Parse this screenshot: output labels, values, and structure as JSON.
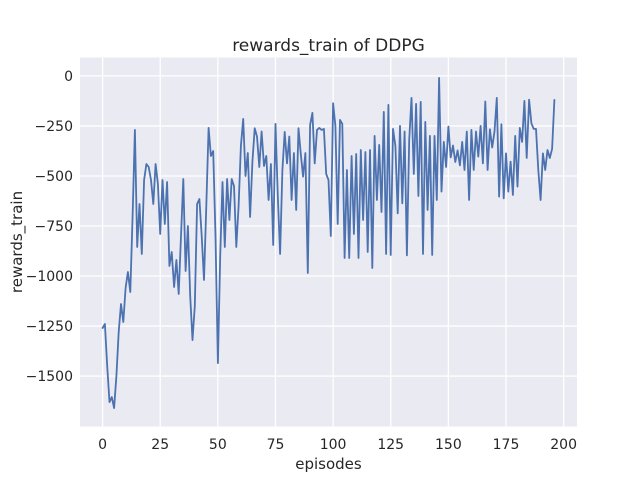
{
  "figure": {
    "title": "rewards_train of DDPG",
    "xlabel": "episodes",
    "ylabel": "rewards_train",
    "background_color": "#ffffff",
    "panel_color": "#eaeaf2",
    "grid_color": "#ffffff",
    "line_color": "#4c72b0",
    "text_color": "#262626"
  },
  "chart_data": {
    "type": "line",
    "title": "rewards_train of DDPG",
    "xlabel": "episodes",
    "ylabel": "rewards_train",
    "grid": true,
    "legend": false,
    "x_ticks": [
      0,
      25,
      50,
      75,
      100,
      125,
      150,
      175,
      200
    ],
    "y_ticks": [
      0,
      -250,
      -500,
      -750,
      -1000,
      -1250,
      -1500
    ],
    "xlim": [
      -9.8,
      205.8
    ],
    "ylim": [
      -1752,
      92
    ],
    "episodes_range": [
      0,
      196
    ],
    "series": [
      {
        "name": "rewards_train",
        "color": "#4c72b0",
        "x_is_index": true,
        "values": [
          -1260,
          -1240,
          -1450,
          -1630,
          -1605,
          -1660,
          -1500,
          -1280,
          -1140,
          -1230,
          -1060,
          -980,
          -1080,
          -700,
          -270,
          -855,
          -640,
          -890,
          -520,
          -440,
          -455,
          -520,
          -640,
          -440,
          -540,
          -790,
          -520,
          -740,
          -530,
          -950,
          -880,
          -1055,
          -920,
          -1090,
          -800,
          -515,
          -975,
          -750,
          -1100,
          -1320,
          -1150,
          -640,
          -615,
          -800,
          -1020,
          -650,
          -260,
          -400,
          -375,
          -800,
          -1435,
          -900,
          -530,
          -855,
          -515,
          -720,
          -515,
          -550,
          -855,
          -650,
          -350,
          -215,
          -500,
          -385,
          -705,
          -430,
          -262,
          -303,
          -455,
          -278,
          -450,
          -400,
          -620,
          -440,
          -845,
          -240,
          -600,
          -890,
          -470,
          -280,
          -437,
          -303,
          -620,
          -385,
          -670,
          -262,
          -390,
          -503,
          -385,
          -985,
          -245,
          -185,
          -437,
          -270,
          -260,
          -270,
          -265,
          -490,
          -520,
          -800,
          -137,
          -250,
          -740,
          -220,
          -240,
          -910,
          -470,
          -910,
          -400,
          -790,
          -390,
          -910,
          -370,
          -720,
          -380,
          -880,
          -370,
          -960,
          -300,
          -620,
          -345,
          -680,
          -180,
          -890,
          -145,
          -895,
          -265,
          -350,
          -687,
          -250,
          -637,
          -278,
          -897,
          -320,
          -110,
          -490,
          -140,
          -600,
          -130,
          -890,
          -230,
          -670,
          -300,
          -895,
          -300,
          -620,
          -10,
          -578,
          -330,
          -455,
          -253,
          -407,
          -348,
          -430,
          -372,
          -447,
          -330,
          -470,
          -278,
          -620,
          -270,
          -470,
          -278,
          -403,
          -250,
          -437,
          -128,
          -470,
          -267,
          -358,
          -278,
          -110,
          -603,
          -242,
          -612,
          -387,
          -578,
          -428,
          -595,
          -300,
          -553,
          -260,
          -330,
          -125,
          -410,
          -119,
          -237,
          -265,
          -265,
          -470,
          -620,
          -387,
          -470,
          -370,
          -410,
          -365,
          -120
        ]
      }
    ]
  }
}
